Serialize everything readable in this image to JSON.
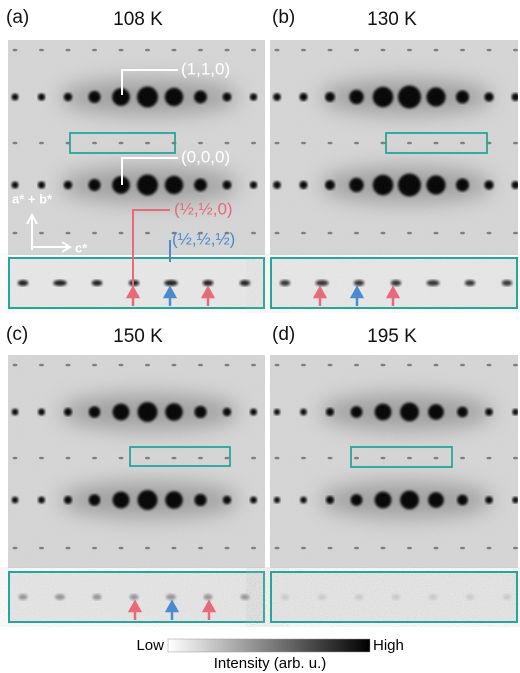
{
  "panels": [
    {
      "label": "(a)",
      "temperature": "108 K"
    },
    {
      "label": "(b)",
      "temperature": "130 K"
    },
    {
      "label": "(c)",
      "temperature": "150 K"
    },
    {
      "label": "(d)",
      "temperature": "195 K"
    }
  ],
  "annotations": {
    "peak_110": "(1,1,0)",
    "peak_000": "(0,0,0)",
    "peak_half_half_0": "(½,½,0)",
    "peak_half_half_half": "(½,½,½)"
  },
  "axes": {
    "vertical": "a* + b*",
    "horizontal": "c*"
  },
  "colorbar": {
    "low": "Low",
    "high": "High",
    "label": "Intensity (arb. u.)"
  }
}
